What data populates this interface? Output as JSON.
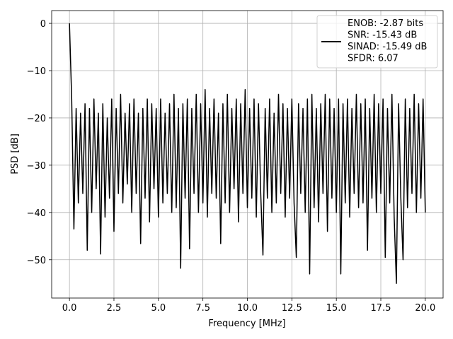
{
  "chart_data": {
    "type": "line",
    "xlabel": "Frequency [MHz]",
    "ylabel": "PSD [dB]",
    "x": [
      0,
      0.125,
      0.25,
      0.375,
      0.5,
      0.625,
      0.75,
      0.875,
      1,
      1.125,
      1.25,
      1.375,
      1.5,
      1.625,
      1.75,
      1.875,
      2,
      2.125,
      2.25,
      2.375,
      2.5,
      2.625,
      2.75,
      2.875,
      3,
      3.125,
      3.25,
      3.375,
      3.5,
      3.625,
      3.75,
      3.875,
      4,
      4.125,
      4.25,
      4.375,
      4.5,
      4.625,
      4.75,
      4.875,
      5,
      5.125,
      5.25,
      5.375,
      5.5,
      5.625,
      5.75,
      5.875,
      6,
      6.125,
      6.25,
      6.375,
      6.5,
      6.625,
      6.75,
      6.875,
      7,
      7.125,
      7.25,
      7.375,
      7.5,
      7.625,
      7.75,
      7.875,
      8,
      8.125,
      8.25,
      8.375,
      8.5,
      8.625,
      8.75,
      8.875,
      9,
      9.125,
      9.25,
      9.375,
      9.5,
      9.625,
      9.75,
      9.875,
      10,
      10.125,
      10.25,
      10.375,
      10.5,
      10.625,
      10.75,
      10.875,
      11,
      11.125,
      11.25,
      11.375,
      11.5,
      11.625,
      11.75,
      11.875,
      12,
      12.125,
      12.25,
      12.375,
      12.5,
      12.625,
      12.75,
      12.875,
      13,
      13.125,
      13.25,
      13.375,
      13.5,
      13.625,
      13.75,
      13.875,
      14,
      14.125,
      14.25,
      14.375,
      14.5,
      14.625,
      14.75,
      14.875,
      15,
      15.125,
      15.25,
      15.375,
      15.5,
      15.625,
      15.75,
      15.875,
      16,
      16.125,
      16.25,
      16.375,
      16.5,
      16.625,
      16.75,
      16.875,
      17,
      17.125,
      17.25,
      17.375,
      17.5,
      17.625,
      17.75,
      17.875,
      18,
      18.125,
      18.25,
      18.375,
      18.5,
      18.625,
      18.75,
      18.875,
      19,
      19.125,
      19.25,
      19.375,
      19.5,
      19.625,
      19.75,
      19.875,
      20
    ],
    "series": [
      {
        "name": [
          "ENOB: -2.87 bits",
          "SNR: -15.43 dB",
          "SINAD: -15.49 dB",
          "SFDR: 6.07"
        ],
        "color": "#000000",
        "values": [
          0,
          -16,
          -43.5,
          -18,
          -38,
          -19,
          -36,
          -17,
          -48,
          -18,
          -40,
          -16,
          -35,
          -19,
          -48.8,
          -17,
          -41,
          -20,
          -37,
          -16,
          -44,
          -18,
          -36,
          -15,
          -38,
          -19,
          -34,
          -17,
          -40,
          -16,
          -36,
          -19,
          -46.6,
          -18,
          -37,
          -16,
          -42,
          -17,
          -35,
          -18,
          -41,
          -16,
          -38,
          -19,
          -36,
          -17,
          -40,
          -15,
          -39,
          -18,
          -51.8,
          -17,
          -37,
          -16,
          -47.7,
          -18,
          -36,
          -15,
          -40,
          -17,
          -38,
          -14,
          -41,
          -18,
          -36,
          -16,
          -37,
          -19,
          -46.6,
          -17,
          -38,
          -15,
          -40,
          -18,
          -35,
          -16,
          -42,
          -17,
          -36,
          -14,
          -39,
          -18,
          -37,
          -16,
          -41,
          -17,
          -36,
          -49,
          -18,
          -37,
          -16,
          -40,
          -19,
          -38,
          -15,
          -36,
          -17,
          -41,
          -18,
          -37,
          -16,
          -38,
          -49.5,
          -17,
          -36,
          -18,
          -40,
          -16,
          -53,
          -15,
          -39,
          -18,
          -42,
          -17,
          -36,
          -15,
          -44,
          -16,
          -37,
          -18,
          -40,
          -16,
          -53,
          -17,
          -38,
          -16,
          -41,
          -18,
          -36,
          -15,
          -39,
          -17,
          -38,
          -16,
          -48,
          -18,
          -37,
          -15,
          -40,
          -17,
          -36,
          -16,
          -49.5,
          -18,
          -38,
          -15,
          -41,
          -55,
          -17,
          -37,
          -50,
          -16,
          -39,
          -18,
          -36,
          -15,
          -40,
          -17,
          -37,
          -16,
          -40
        ]
      }
    ],
    "xlim": [
      -1,
      21
    ],
    "ylim": [
      -58.1,
      2.7
    ],
    "xticks": [
      {
        "value": 0,
        "label": "0.0"
      },
      {
        "value": 2.5,
        "label": "2.5"
      },
      {
        "value": 5,
        "label": "5.0"
      },
      {
        "value": 7.5,
        "label": "7.5"
      },
      {
        "value": 10,
        "label": "10.0"
      },
      {
        "value": 12.5,
        "label": "12.5"
      },
      {
        "value": 15,
        "label": "15.0"
      },
      {
        "value": 17.5,
        "label": "17.5"
      },
      {
        "value": 20,
        "label": "20.0"
      }
    ],
    "yticks": [
      0,
      {
        "value": -10,
        "label": "−10"
      },
      {
        "value": -20,
        "label": "−20"
      },
      {
        "value": -30,
        "label": "−30"
      },
      {
        "value": -40,
        "label": "−40"
      },
      {
        "value": -50,
        "label": "−50"
      }
    ],
    "grid": true,
    "legend": "upper right"
  }
}
